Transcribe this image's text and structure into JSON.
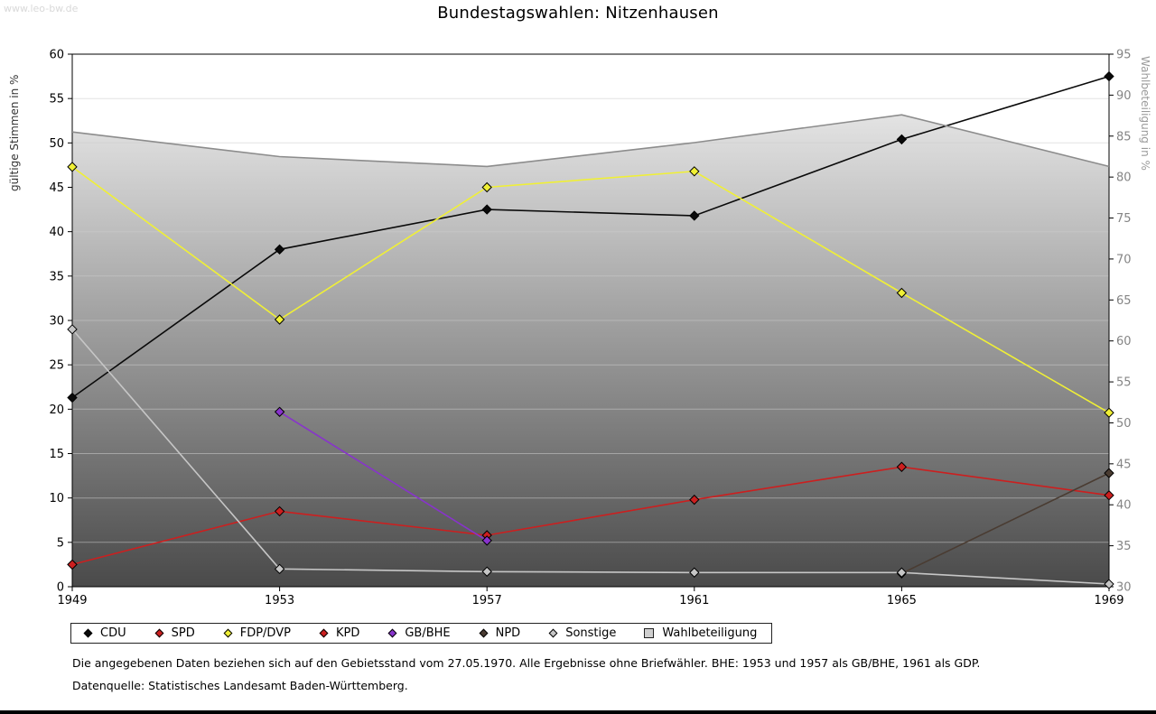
{
  "watermark": "www.leo-bw.de",
  "footnotes": {
    "line1": "Die angegebenen Daten beziehen sich auf den Gebietsstand vom 27.05.1970. Alle Ergebnisse ohne Briefwähler. BHE: 1953 und 1957 als GB/BHE, 1961 als GDP.",
    "line2": "Datenquelle: Statistisches Landesamt Baden-Württemberg."
  },
  "chart_data": {
    "type": "line",
    "title": "Bundestagswahlen: Nitzenhausen",
    "x": [
      1949,
      1953,
      1957,
      1961,
      1965,
      1969
    ],
    "left_axis": {
      "label": "gültige Stimmen in %",
      "min": 0,
      "max": 60,
      "tick_step": 5
    },
    "right_axis": {
      "label": "Wahlbeteiligung in %",
      "min": 30,
      "max": 95,
      "tick_step": 5
    },
    "grid": "horizontal",
    "legend_position": "bottom",
    "series": [
      {
        "name": "CDU",
        "color": "#0a0a0a",
        "axis": "left",
        "marker": "diamond",
        "values": [
          21.3,
          38.0,
          42.5,
          41.8,
          50.4,
          57.5
        ]
      },
      {
        "name": "SPD",
        "color": "#cc1f1f",
        "axis": "left",
        "marker": "diamond",
        "values": [
          2.5,
          8.5,
          5.8,
          9.8,
          13.5,
          10.3
        ]
      },
      {
        "name": "FDP/DVP",
        "color": "#f0f035",
        "axis": "left",
        "marker": "diamond",
        "values": [
          47.3,
          30.1,
          45.0,
          46.8,
          33.1,
          19.6
        ]
      },
      {
        "name": "KPD",
        "color": "#cc1f1f",
        "axis": "left",
        "marker": "diamond",
        "values": [
          2.5,
          null,
          null,
          null,
          null,
          null
        ]
      },
      {
        "name": "GB/BHE",
        "color": "#8833cc",
        "axis": "left",
        "marker": "diamond",
        "values": [
          null,
          19.7,
          5.2,
          null,
          null,
          null
        ]
      },
      {
        "name": "NPD",
        "color": "#4a3c32",
        "axis": "left",
        "marker": "diamond",
        "values": [
          null,
          null,
          null,
          null,
          1.5,
          12.8
        ]
      },
      {
        "name": "Sonstige",
        "color": "#c6c6c6",
        "axis": "left",
        "marker": "diamond",
        "values": [
          29.0,
          2.0,
          1.7,
          1.6,
          1.6,
          0.3
        ]
      },
      {
        "name": "Wahlbeteiligung",
        "color": "#8c8c8c",
        "axis": "right",
        "marker": "none",
        "area": true,
        "values": [
          85.5,
          82.5,
          81.3,
          84.2,
          87.6,
          81.3
        ]
      }
    ]
  }
}
